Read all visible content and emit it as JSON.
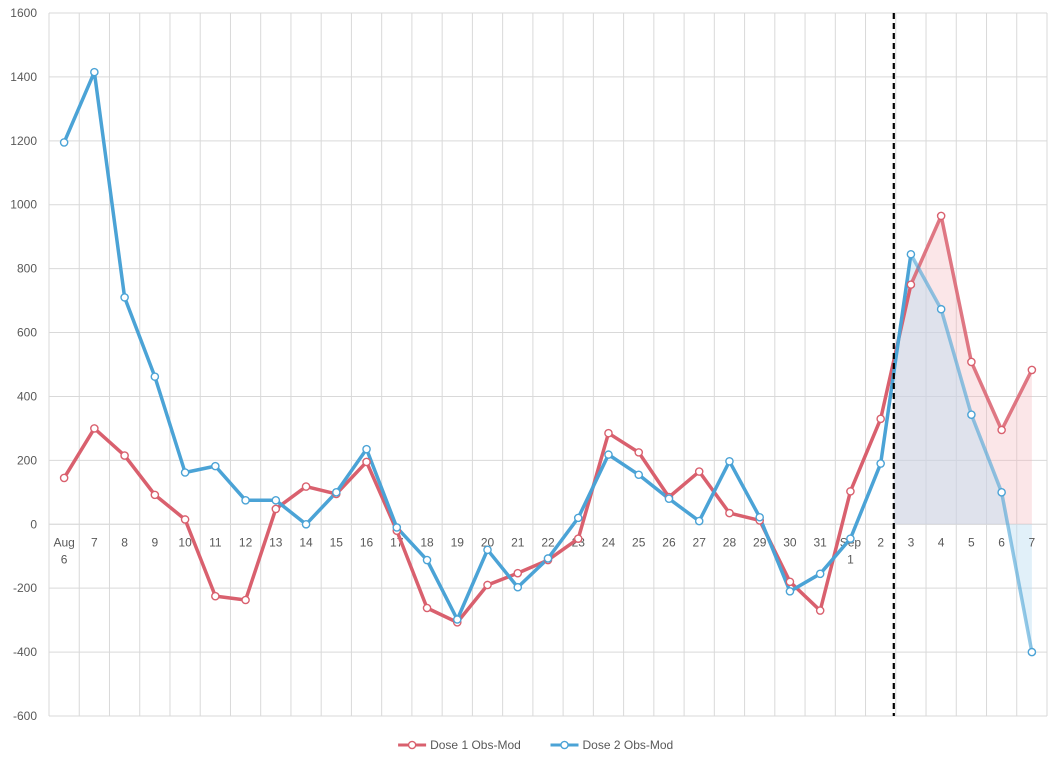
{
  "chart_data": {
    "type": "line",
    "title": "",
    "xlabel": "",
    "ylabel": "",
    "ylim": [
      -600,
      1600
    ],
    "y_ticks": [
      -600,
      -400,
      -200,
      0,
      200,
      400,
      600,
      800,
      1000,
      1200,
      1400,
      1600
    ],
    "categories": [
      [
        "Aug",
        "6"
      ],
      [
        "7"
      ],
      [
        "8"
      ],
      [
        "9"
      ],
      [
        "10"
      ],
      [
        "11"
      ],
      [
        "12"
      ],
      [
        "13"
      ],
      [
        "14"
      ],
      [
        "15"
      ],
      [
        "16"
      ],
      [
        "17"
      ],
      [
        "18"
      ],
      [
        "19"
      ],
      [
        "20"
      ],
      [
        "21"
      ],
      [
        "22"
      ],
      [
        "23"
      ],
      [
        "24"
      ],
      [
        "25"
      ],
      [
        "26"
      ],
      [
        "27"
      ],
      [
        "28"
      ],
      [
        "29"
      ],
      [
        "30"
      ],
      [
        "31"
      ],
      [
        "Sep",
        "1"
      ],
      [
        "2"
      ],
      [
        "3"
      ],
      [
        "4"
      ],
      [
        "5"
      ],
      [
        "6"
      ],
      [
        "7"
      ]
    ],
    "grid": "on",
    "legend_position": "bottom",
    "marker_line_after_category": "2",
    "shaded_from_category": "3",
    "series": [
      {
        "name": "Dose 1 Obs-Mod",
        "color": "#D9606E",
        "values": [
          145,
          300,
          215,
          92,
          15,
          -225,
          -237,
          48,
          118,
          95,
          195,
          -20,
          -262,
          -307,
          -190,
          -153,
          -112,
          -45,
          285,
          225,
          85,
          165,
          35,
          12,
          -180,
          -270,
          103,
          330,
          750,
          965,
          508,
          295,
          483
        ]
      },
      {
        "name": "Dose 2 Obs-Mod",
        "color": "#4BA3D6",
        "values": [
          1195,
          1415,
          710,
          462,
          162,
          182,
          75,
          75,
          0,
          100,
          235,
          -10,
          -112,
          -298,
          -80,
          -197,
          -107,
          20,
          218,
          155,
          80,
          10,
          197,
          22,
          -210,
          -155,
          -45,
          190,
          845,
          673,
          343,
          100,
          -400
        ]
      }
    ]
  }
}
